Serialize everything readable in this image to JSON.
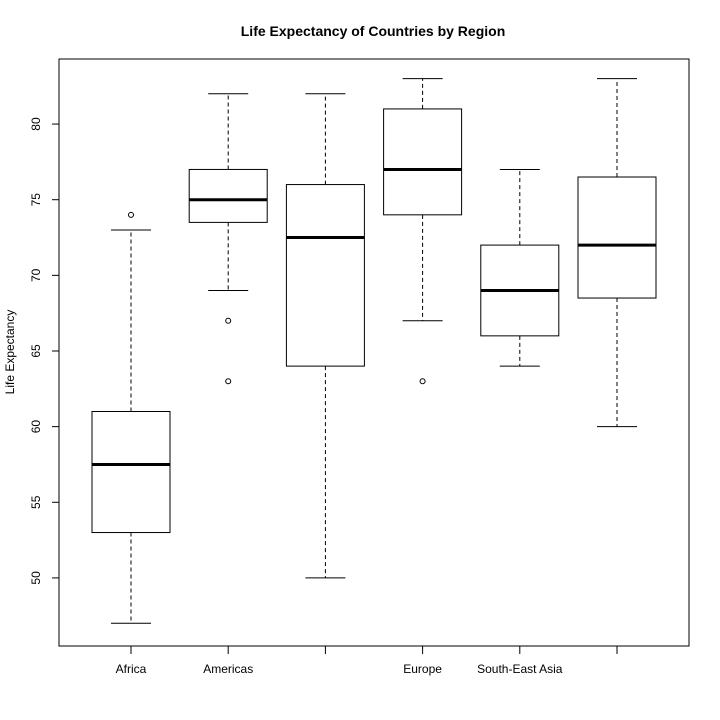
{
  "chart_data": {
    "type": "boxplot",
    "title": "Life Expectancy of Countries by Region",
    "xlabel": "",
    "ylabel": "Life Expectancy",
    "ylim": [
      45.5,
      84.3
    ],
    "yticks": [
      50,
      55,
      60,
      65,
      70,
      75,
      80
    ],
    "categories": [
      "Africa",
      "Americas",
      "",
      "Europe",
      "South-East Asia",
      ""
    ],
    "boxes": [
      {
        "min": 47,
        "q1": 53,
        "median": 57.5,
        "q3": 61,
        "max": 73,
        "outliers": [
          74
        ]
      },
      {
        "min": 69,
        "q1": 73.5,
        "median": 75,
        "q3": 77,
        "max": 82,
        "outliers": [
          67,
          63
        ]
      },
      {
        "min": 50,
        "q1": 64,
        "median": 72.5,
        "q3": 76,
        "max": 82,
        "outliers": []
      },
      {
        "min": 67,
        "q1": 74,
        "median": 77,
        "q3": 81,
        "max": 83,
        "outliers": [
          63
        ]
      },
      {
        "min": 64,
        "q1": 66,
        "median": 69,
        "q3": 72,
        "max": 77,
        "outliers": []
      },
      {
        "min": 60,
        "q1": 68.5,
        "median": 72,
        "q3": 76.5,
        "max": 83,
        "outliers": []
      }
    ],
    "grid": false,
    "legend": "none"
  }
}
